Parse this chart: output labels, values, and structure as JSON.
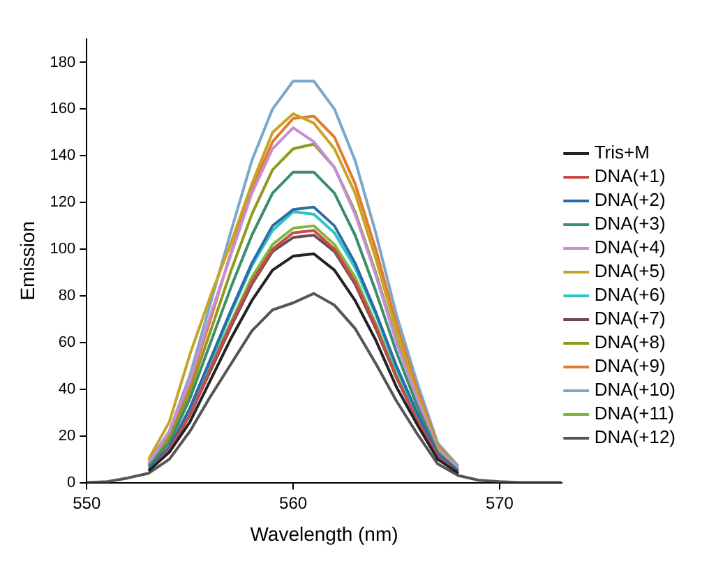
{
  "chart_data": {
    "type": "line",
    "xlabel": "Wavelength (nm)",
    "ylabel": "Emission",
    "x": [
      550,
      551,
      552,
      553,
      554,
      555,
      556,
      557,
      558,
      559,
      560,
      561,
      562,
      563,
      564,
      565,
      566,
      567,
      568,
      569,
      570,
      571,
      572,
      573
    ],
    "xlim": [
      550,
      573
    ],
    "xticks": [
      550,
      560,
      570
    ],
    "ylim": [
      0,
      190
    ],
    "yticks": [
      0,
      20,
      40,
      60,
      80,
      100,
      120,
      140,
      160,
      180
    ],
    "grid": false,
    "legend": "right",
    "marker": "none",
    "line_style": "solid",
    "series": [
      {
        "name": "Tris+M",
        "color": "#222222",
        "values": [
          null,
          null,
          null,
          5,
          13,
          26,
          44,
          62,
          78,
          91,
          97,
          98,
          91,
          78,
          61,
          41,
          25,
          10,
          4,
          null,
          null,
          null,
          null,
          null
        ]
      },
      {
        "name": "DNA(+1)",
        "color": "#c84b4b",
        "values": [
          null,
          null,
          null,
          5,
          14,
          29,
          49,
          68,
          86,
          100,
          107,
          108,
          100,
          86,
          67,
          45,
          27,
          11,
          4,
          null,
          null,
          null,
          null,
          null
        ]
      },
      {
        "name": "DNA(+2)",
        "color": "#2a6ca8",
        "values": [
          null,
          null,
          null,
          6,
          15,
          32,
          53,
          74,
          94,
          110,
          117,
          118,
          110,
          94,
          73,
          50,
          30,
          12,
          5,
          null,
          null,
          null,
          null,
          null
        ]
      },
      {
        "name": "DNA(+3)",
        "color": "#3a8f6a",
        "values": [
          null,
          null,
          null,
          7,
          17,
          36,
          60,
          84,
          106,
          124,
          133,
          133,
          124,
          106,
          82,
          56,
          33,
          13,
          5,
          null,
          null,
          null,
          null,
          null
        ]
      },
      {
        "name": "DNA(+4)",
        "color": "#c38fd8",
        "values": [
          null,
          null,
          null,
          8,
          22,
          44,
          72,
          98,
          124,
          143,
          152,
          146,
          135,
          115,
          89,
          60,
          36,
          14,
          6,
          null,
          null,
          null,
          null,
          null
        ]
      },
      {
        "name": "DNA(+5)",
        "color": "#c9a326",
        "values": [
          null,
          null,
          null,
          10,
          26,
          55,
          80,
          103,
          128,
          150,
          158,
          154,
          143,
          124,
          96,
          65,
          38,
          15,
          6,
          null,
          null,
          null,
          null,
          null
        ]
      },
      {
        "name": "DNA(+6)",
        "color": "#2ec4c4",
        "values": [
          null,
          null,
          null,
          6,
          15,
          31,
          52,
          73,
          93,
          108,
          116,
          115,
          107,
          92,
          72,
          49,
          29,
          12,
          5,
          null,
          null,
          null,
          null,
          null
        ]
      },
      {
        "name": "DNA(+7)",
        "color": "#6b4b4b",
        "values": [
          null,
          null,
          null,
          5,
          14,
          29,
          48,
          67,
          85,
          99,
          105,
          106,
          99,
          85,
          66,
          45,
          27,
          11,
          4,
          null,
          null,
          null,
          null,
          null
        ]
      },
      {
        "name": "DNA(+8)",
        "color": "#8f9a1e",
        "values": [
          null,
          null,
          null,
          7,
          19,
          39,
          65,
          91,
          115,
          134,
          143,
          145,
          135,
          116,
          90,
          61,
          36,
          null,
          null,
          null,
          null,
          null,
          null,
          null
        ]
      },
      {
        "name": "DNA(+9)",
        "color": "#e57a2b",
        "values": [
          null,
          null,
          null,
          8,
          20,
          42,
          70,
          99,
          126,
          146,
          156,
          157,
          148,
          128,
          100,
          68,
          40,
          16,
          6,
          null,
          null,
          null,
          null,
          null
        ]
      },
      {
        "name": "DNA(+10)",
        "color": "#7ba7c9",
        "values": [
          null,
          null,
          null,
          9,
          22,
          46,
          77,
          108,
          138,
          160,
          172,
          172,
          160,
          138,
          107,
          72,
          43,
          17,
          7,
          null,
          null,
          null,
          null,
          null
        ]
      },
      {
        "name": "DNA(+11)",
        "color": "#7cb83a",
        "values": [
          null,
          null,
          null,
          6,
          14,
          30,
          50,
          69,
          88,
          102,
          109,
          110,
          102,
          88,
          68,
          46,
          28,
          null,
          null,
          null,
          null,
          null,
          null,
          null
        ]
      },
      {
        "name": "DNA(+12)",
        "color": "#555555",
        "values": [
          0,
          0.4,
          2,
          4,
          10,
          22,
          37,
          51,
          65,
          74,
          77,
          81,
          76,
          66,
          51,
          35,
          21,
          8,
          3,
          1,
          0.4,
          0,
          0,
          0
        ]
      }
    ]
  }
}
